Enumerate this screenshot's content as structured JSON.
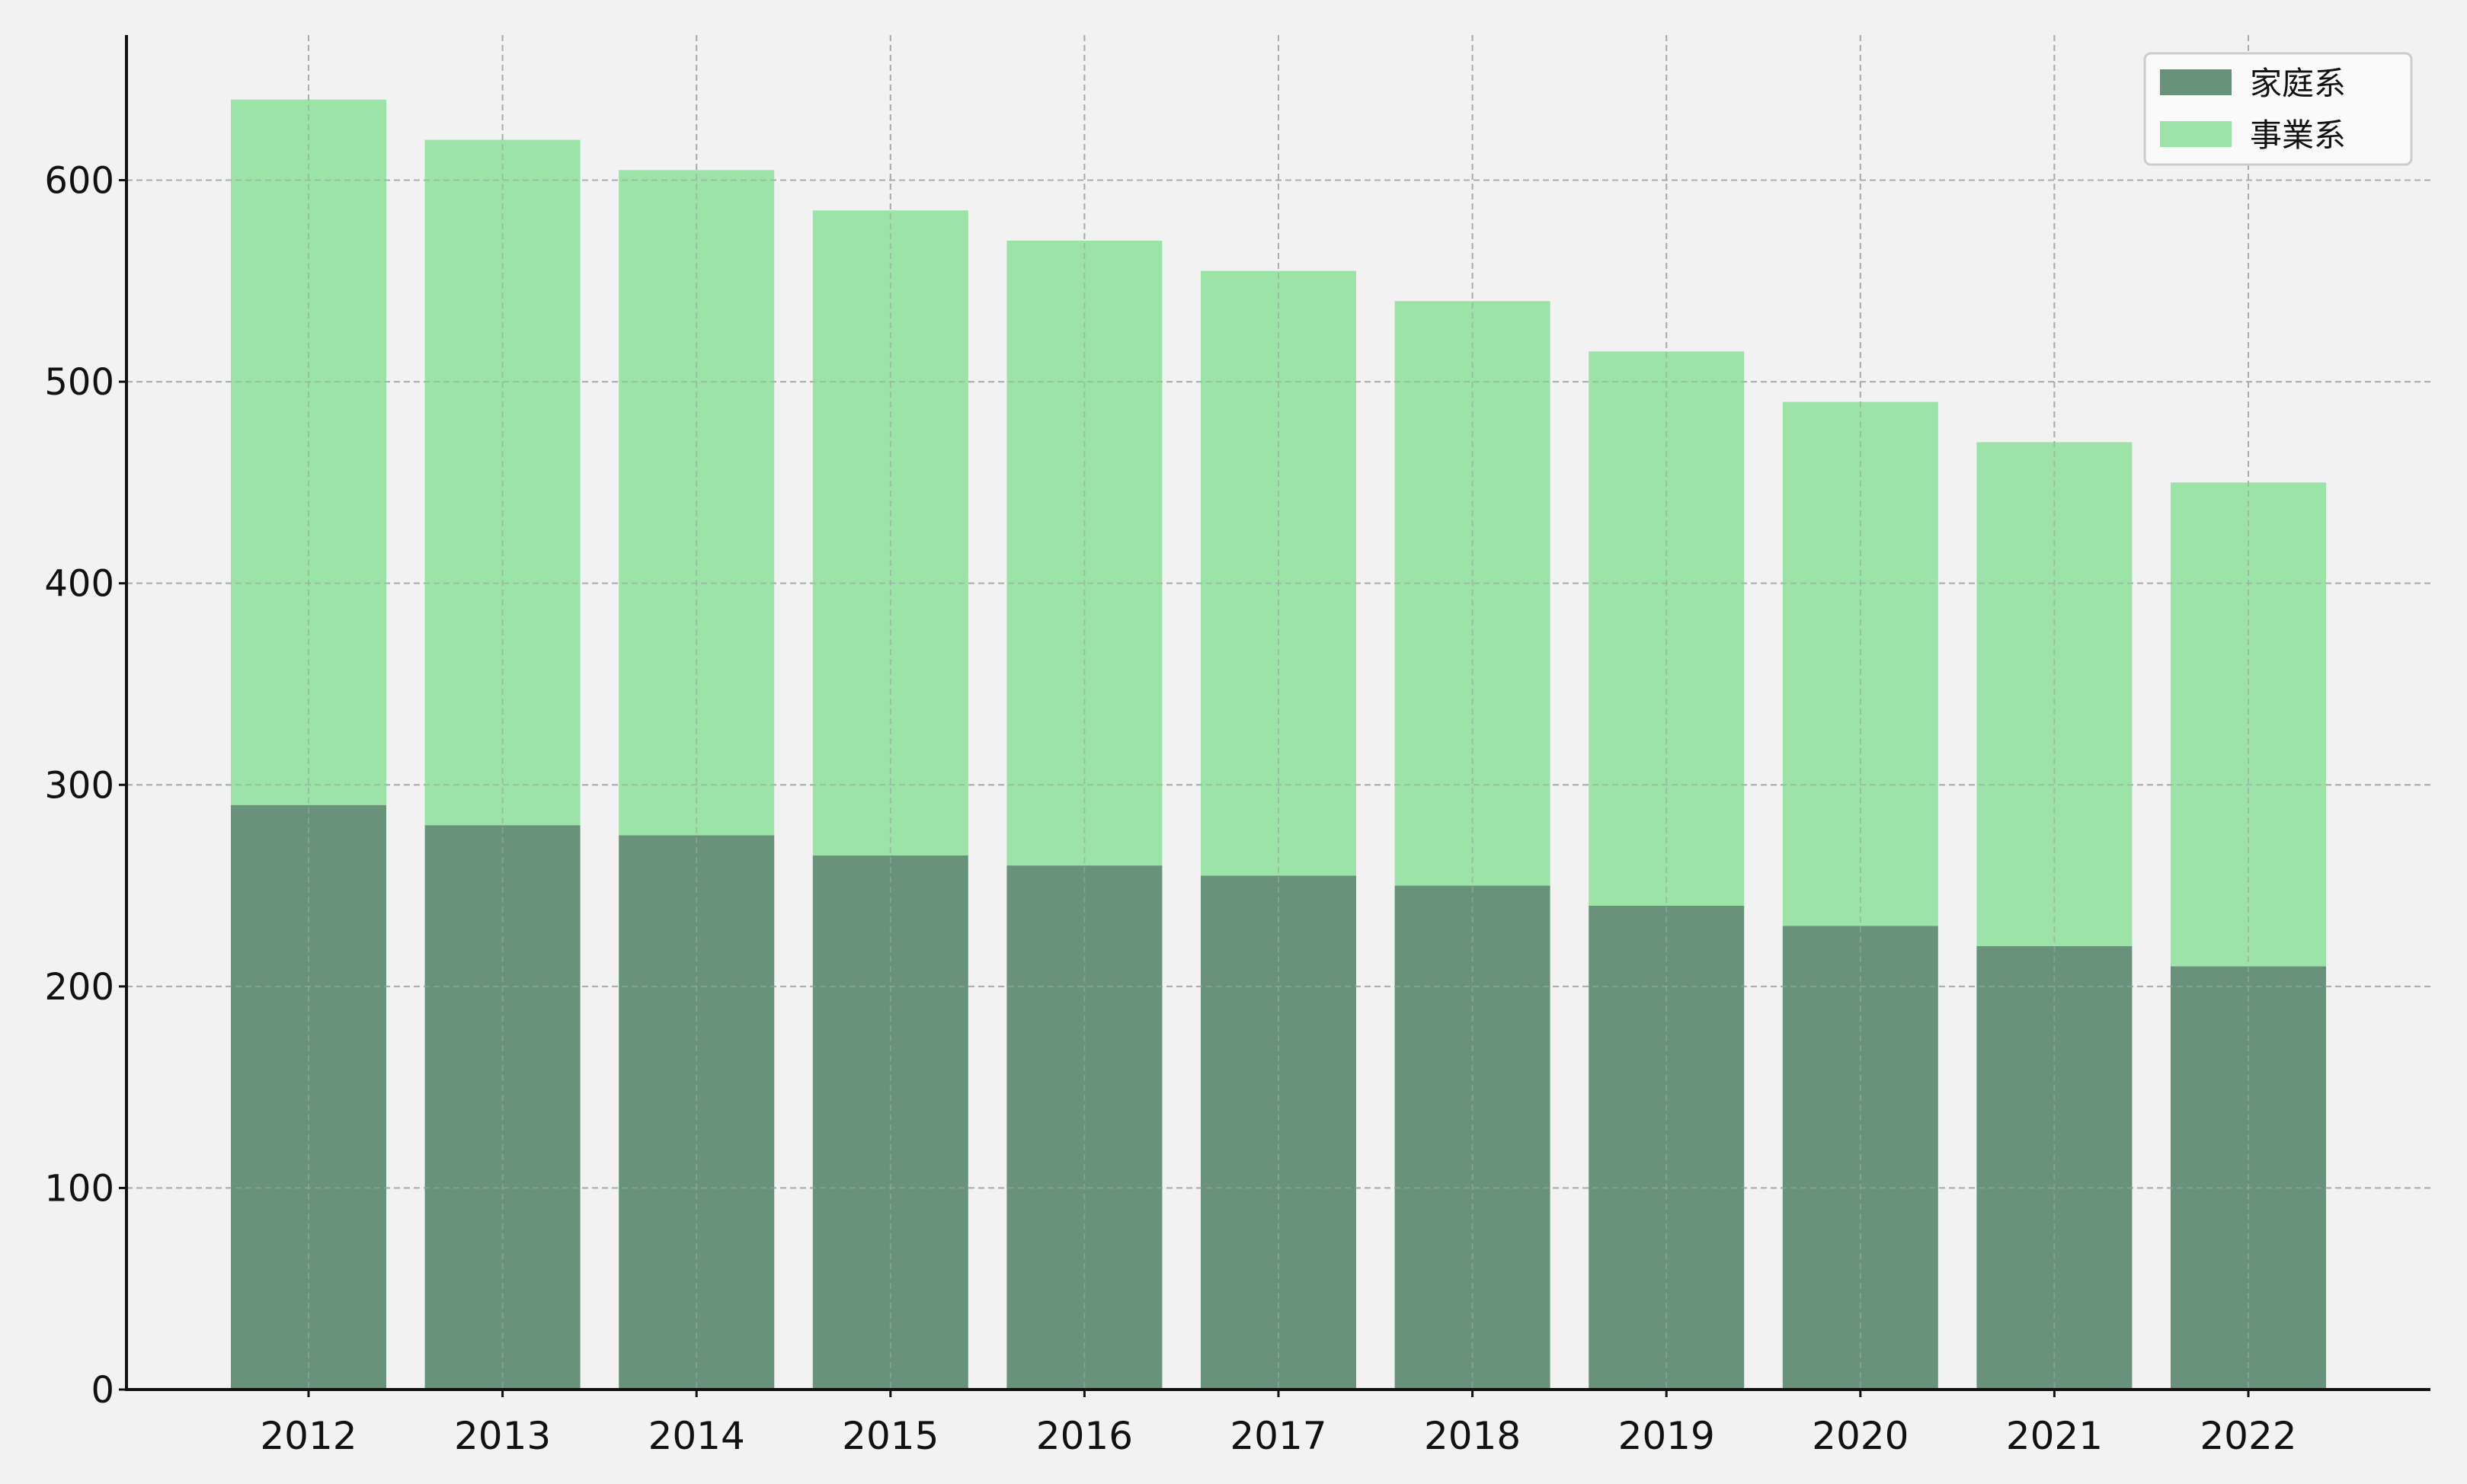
{
  "chart_data": {
    "type": "bar",
    "stacked": true,
    "categories": [
      "2012",
      "2013",
      "2014",
      "2015",
      "2016",
      "2017",
      "2018",
      "2019",
      "2020",
      "2021",
      "2022"
    ],
    "series": [
      {
        "name": "家庭系",
        "color": "#68927a",
        "values": [
          290,
          280,
          275,
          265,
          260,
          255,
          250,
          240,
          230,
          220,
          210
        ]
      },
      {
        "name": "事業系",
        "color": "#9ce3a8",
        "values": [
          350,
          340,
          330,
          320,
          310,
          300,
          290,
          275,
          260,
          250,
          240
        ]
      }
    ],
    "ylim": [
      0,
      672
    ],
    "yticks": [
      0,
      100,
      200,
      300,
      400,
      500,
      600
    ],
    "ytick_labels": [
      "0",
      "100",
      "200",
      "300",
      "400",
      "500",
      "600"
    ],
    "grid": true,
    "legend_position": "top-right",
    "title": "",
    "xlabel": "",
    "ylabel": ""
  },
  "colors": {
    "background": "#f2f2f2",
    "axis": "#111111",
    "grid": "#b8b8b8",
    "legend_bg": "#fafafa",
    "legend_border": "#cccccc"
  }
}
